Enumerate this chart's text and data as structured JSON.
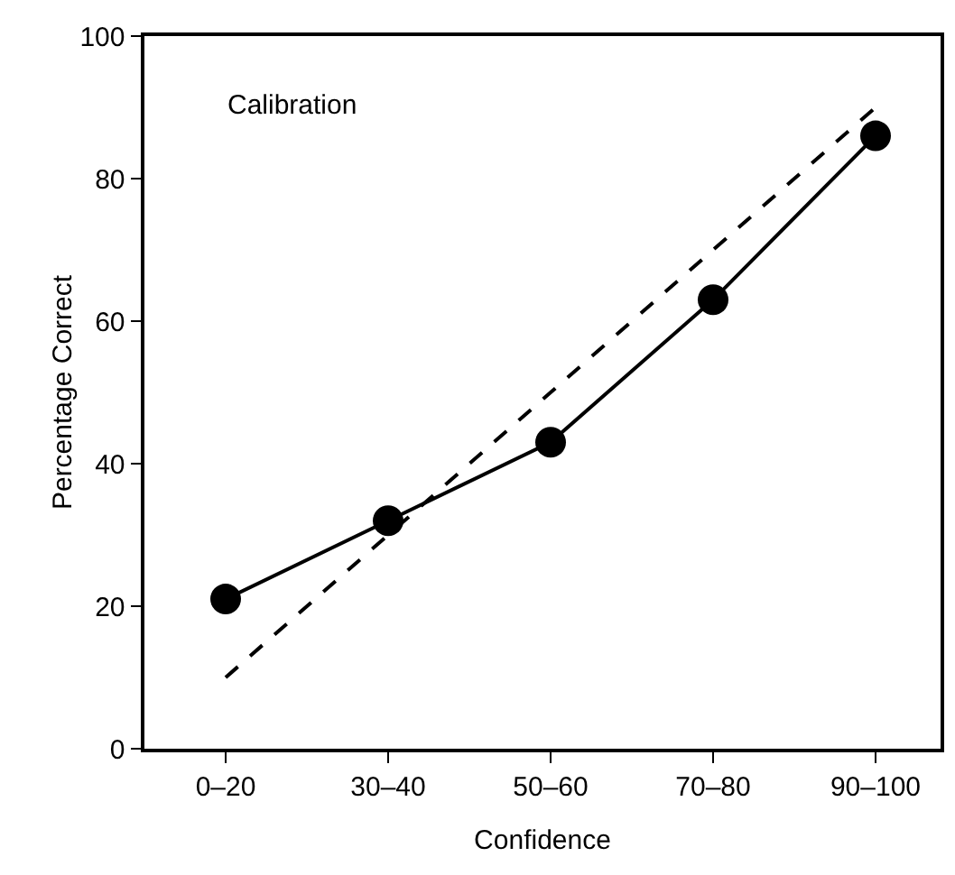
{
  "chart_data": {
    "type": "line",
    "xlabel": "Confidence",
    "ylabel": "Percentage Correct",
    "annotations": [
      "Calibration"
    ],
    "categories": [
      "0–20",
      "30–40",
      "50–60",
      "70–80",
      "90–100"
    ],
    "ylim": [
      0,
      100
    ],
    "yticks": [
      0,
      20,
      40,
      60,
      80,
      100
    ],
    "grid": false,
    "legend": false,
    "series": [
      {
        "color": "#000000",
        "values": [
          21,
          32,
          43,
          63,
          86
        ],
        "marker": "circle",
        "line_style": "solid"
      },
      {
        "color": "#000000",
        "values": [
          10,
          30,
          50,
          70,
          90
        ],
        "marker": "none",
        "line_style": "dashed"
      }
    ]
  }
}
